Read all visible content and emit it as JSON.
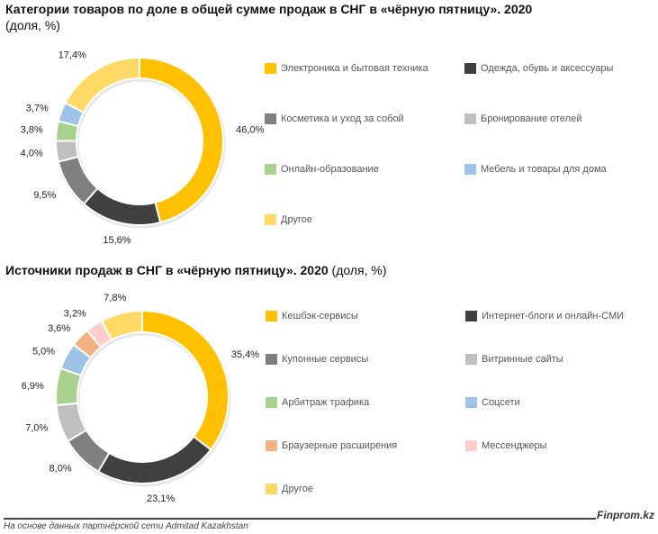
{
  "chart_data": [
    {
      "type": "pie",
      "variant": "donut",
      "title": "Категории товаров по доле в общей сумме продаж в СНГ в «чёрную пятницу». 2020",
      "subtitle": "(доля, %)",
      "legend_position": "right",
      "categories": [
        "Электроника и бытовая техника",
        "Одежда, обувь и аксессуары",
        "Косметика и уход за собой",
        "Бронирование отелей",
        "Онлайн-образование",
        "Мебель и товары для дома",
        "Другое"
      ],
      "values": [
        46.0,
        15.6,
        9.5,
        4.0,
        3.8,
        3.7,
        17.4
      ],
      "labels": [
        "46,0%",
        "15,6%",
        "9,5%",
        "4,0%",
        "3,8%",
        "3,7%",
        "17,4%"
      ],
      "colors": [
        "#FFC000",
        "#404040",
        "#7F7F7F",
        "#BFBFBF",
        "#A9D18E",
        "#9DC3E6",
        "#FFD966"
      ]
    },
    {
      "type": "pie",
      "variant": "donut",
      "title_bold": "Источники продаж в СНГ в «чёрную пятницу». 2020",
      "title_normal": "(доля, %)",
      "legend_position": "right",
      "categories": [
        "Кешбэк-сервисы",
        "Интернет-блоги и онлайн-СМИ",
        "Купонные сервисы",
        "Витринные сайты",
        "Арбитраж трафика",
        "Соцсети",
        "Браузерные расширения",
        "Мессенджеры",
        "Другое"
      ],
      "values": [
        35.4,
        23.1,
        8.0,
        7.0,
        6.9,
        5.0,
        3.6,
        3.2,
        7.8
      ],
      "labels": [
        "35,4%",
        "23,1%",
        "8,0%",
        "7,0%",
        "6,9%",
        "5,0%",
        "3,6%",
        "3,2%",
        "7,8%"
      ],
      "colors": [
        "#FFC000",
        "#404040",
        "#7F7F7F",
        "#BFBFBF",
        "#A9D18E",
        "#9DC3E6",
        "#F4B183",
        "#FFCCCC",
        "#FFD966"
      ]
    }
  ],
  "footer": {
    "brand": "Finprom.kz",
    "source": "На основе данных партнёрской сети Admitad Kazakhstan"
  }
}
